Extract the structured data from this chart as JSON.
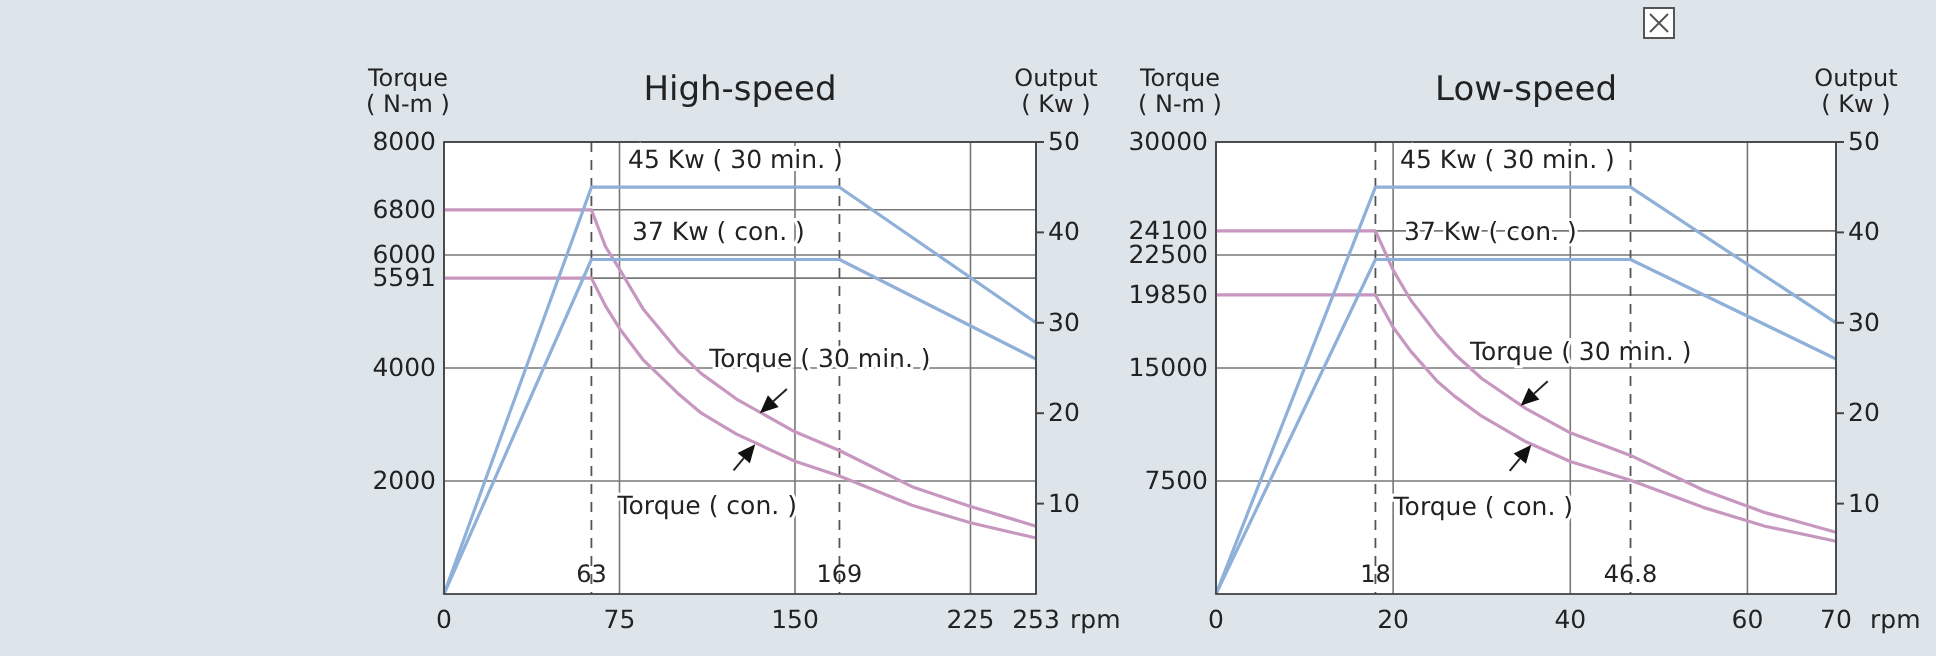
{
  "chart_data": [
    {
      "type": "line",
      "title": "High-speed",
      "xlabel": "rpm",
      "ylabel": "Torque ( N-m )",
      "y2label": "Output ( Kw )",
      "xlim": [
        0,
        253
      ],
      "xticks": [
        0,
        75,
        150,
        225,
        253
      ],
      "ylim": [
        0,
        8000
      ],
      "yticks": [
        2000,
        4000,
        5591,
        6000,
        6800,
        8000
      ],
      "y2lim": [
        0,
        50
      ],
      "y2ticks": [
        10,
        20,
        30,
        40,
        50
      ],
      "grid": true,
      "series": [
        {
          "color": "#c797c0",
          "x": [
            0,
            63,
            69,
            75,
            85,
            100,
            110,
            125,
            150,
            169,
            200,
            225,
            253
          ],
          "values": [
            6800,
            6800,
            6150,
            5750,
            5050,
            4300,
            3900,
            3450,
            2870,
            2540,
            1900,
            1550,
            1200
          ]
        },
        {
          "color": "#c797c0",
          "x": [
            0,
            63,
            69,
            75,
            85,
            100,
            110,
            125,
            150,
            169,
            200,
            225,
            253
          ],
          "values": [
            5591,
            5591,
            5100,
            4700,
            4150,
            3550,
            3200,
            2830,
            2350,
            2090,
            1570,
            1260,
            990
          ]
        },
        {
          "color": "#8fb0d8",
          "axis": "y2",
          "x": [
            0,
            63,
            169,
            253
          ],
          "values": [
            0,
            45,
            45,
            30
          ]
        },
        {
          "color": "#8fb0d8",
          "axis": "y2",
          "x": [
            0,
            63,
            169,
            253
          ],
          "values": [
            0,
            37,
            37,
            26
          ]
        }
      ],
      "ref_lines": [
        {
          "axis": "x",
          "value": 63,
          "label": "63",
          "line_style": "dashed",
          "color": "#555555"
        },
        {
          "axis": "x",
          "value": 169,
          "label": "169",
          "line_style": "dashed",
          "color": "#555555"
        }
      ],
      "annotations": [
        "45 Kw ( 30 min. )",
        "37 Kw ( con. )",
        {
          "text": "Torque ( 30 min. )",
          "x": 135,
          "y": 3200
        },
        {
          "text": "Torque ( con. )",
          "x": 133,
          "y": 2650
        }
      ]
    },
    {
      "type": "line",
      "title": "Low-speed",
      "xlabel": "rpm",
      "ylabel": "Torque ( N-m )",
      "y2label": "Output ( Kw )",
      "xlim": [
        0,
        70
      ],
      "xticks": [
        0,
        20,
        40,
        60,
        70
      ],
      "ylim": [
        0,
        30000
      ],
      "yticks": [
        7500,
        15000,
        19850,
        22500,
        24100,
        30000
      ],
      "y2lim": [
        0,
        50
      ],
      "y2ticks": [
        10,
        20,
        30,
        40,
        50
      ],
      "grid": true,
      "series": [
        {
          "color": "#c797c0",
          "x": [
            0,
            18,
            20,
            22,
            25,
            27,
            30,
            35,
            40,
            46.8,
            55,
            62,
            70
          ],
          "values": [
            24100,
            24100,
            21500,
            19500,
            17200,
            15900,
            14300,
            12300,
            10700,
            9200,
            6900,
            5400,
            4100
          ]
        },
        {
          "color": "#c797c0",
          "x": [
            0,
            18,
            20,
            22,
            25,
            27,
            30,
            35,
            40,
            46.8,
            55,
            62,
            70
          ],
          "values": [
            19850,
            19850,
            17700,
            16100,
            14100,
            13100,
            11800,
            10100,
            8800,
            7550,
            5750,
            4500,
            3500
          ]
        },
        {
          "color": "#8fb0d8",
          "axis": "y2",
          "x": [
            0,
            18,
            46.8,
            70
          ],
          "values": [
            0,
            45,
            45,
            30
          ]
        },
        {
          "color": "#8fb0d8",
          "axis": "y2",
          "x": [
            0,
            18,
            46.8,
            70
          ],
          "values": [
            0,
            37,
            37,
            26
          ]
        }
      ],
      "ref_lines": [
        {
          "axis": "x",
          "value": 18,
          "label": "18",
          "line_style": "dashed",
          "color": "#555555"
        },
        {
          "axis": "x",
          "value": 46.8,
          "label": "46.8",
          "line_style": "dashed",
          "color": "#555555"
        }
      ],
      "annotations": [
        "45 Kw ( 30 min. )",
        "37 Kw ( con. )",
        {
          "text": "Torque ( 30 min. )",
          "x": 34.4,
          "y": 12500
        },
        {
          "text": "Torque ( con. )",
          "x": 35.6,
          "y": 9900
        }
      ]
    }
  ]
}
